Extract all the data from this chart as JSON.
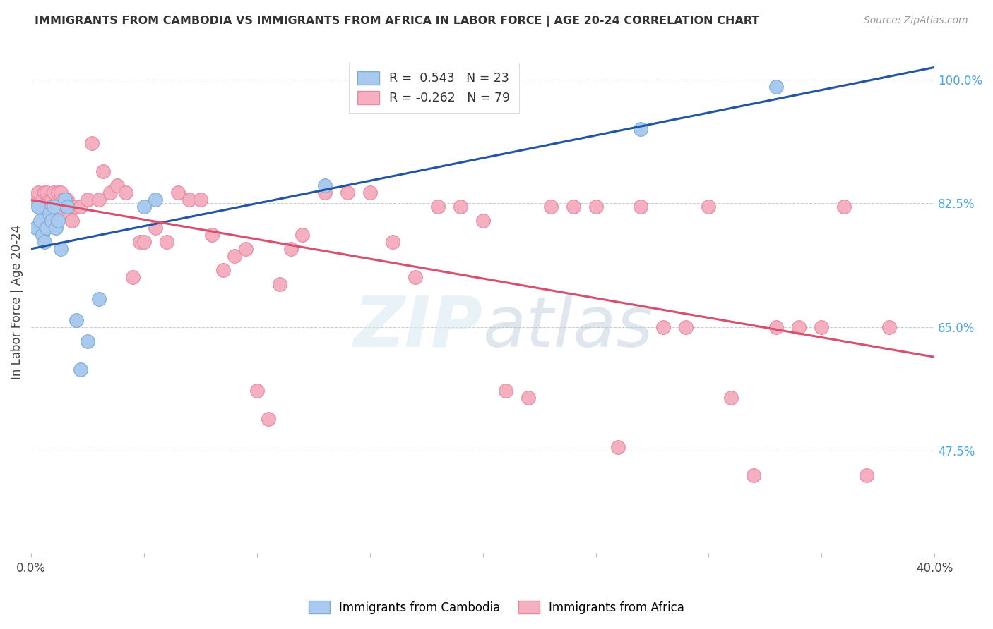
{
  "title": "IMMIGRANTS FROM CAMBODIA VS IMMIGRANTS FROM AFRICA IN LABOR FORCE | AGE 20-24 CORRELATION CHART",
  "source": "Source: ZipAtlas.com",
  "ylabel": "In Labor Force | Age 20-24",
  "xlim": [
    0.0,
    0.4
  ],
  "ylim": [
    0.33,
    1.04
  ],
  "xticks": [
    0.0,
    0.05,
    0.1,
    0.15,
    0.2,
    0.25,
    0.3,
    0.35,
    0.4
  ],
  "right_yticks": [
    0.475,
    0.65,
    0.825,
    1.0
  ],
  "right_yticklabels": [
    "47.5%",
    "65.0%",
    "82.5%",
    "100.0%"
  ],
  "cambodia_color": "#aac9ee",
  "africa_color": "#f4afc0",
  "cambodia_edge_color": "#7bacd4",
  "africa_edge_color": "#e888a0",
  "cambodia_line_color": "#2255a4",
  "africa_line_color": "#d94f6e",
  "cambodia_R": 0.543,
  "cambodia_N": 23,
  "africa_R": -0.262,
  "africa_N": 79,
  "legend_label_cambodia": "Immigrants from Cambodia",
  "legend_label_africa": "Immigrants from Africa",
  "background_color": "#ffffff",
  "grid_color": "#cccccc",
  "watermark": "ZIPatlas",
  "cambodia_x": [
    0.002,
    0.003,
    0.004,
    0.005,
    0.006,
    0.007,
    0.008,
    0.009,
    0.01,
    0.011,
    0.012,
    0.013,
    0.015,
    0.016,
    0.02,
    0.022,
    0.025,
    0.03,
    0.05,
    0.055,
    0.13,
    0.27,
    0.33
  ],
  "cambodia_y": [
    0.79,
    0.82,
    0.8,
    0.78,
    0.77,
    0.79,
    0.81,
    0.8,
    0.82,
    0.79,
    0.8,
    0.76,
    0.83,
    0.82,
    0.66,
    0.59,
    0.63,
    0.69,
    0.82,
    0.83,
    0.85,
    0.93,
    0.99
  ],
  "africa_x": [
    0.002,
    0.003,
    0.004,
    0.005,
    0.005,
    0.006,
    0.006,
    0.007,
    0.007,
    0.008,
    0.008,
    0.009,
    0.009,
    0.01,
    0.01,
    0.011,
    0.011,
    0.012,
    0.012,
    0.013,
    0.014,
    0.015,
    0.016,
    0.016,
    0.017,
    0.018,
    0.019,
    0.02,
    0.022,
    0.025,
    0.027,
    0.03,
    0.032,
    0.035,
    0.038,
    0.042,
    0.045,
    0.048,
    0.05,
    0.055,
    0.06,
    0.065,
    0.07,
    0.075,
    0.08,
    0.085,
    0.09,
    0.095,
    0.1,
    0.105,
    0.11,
    0.115,
    0.12,
    0.13,
    0.14,
    0.15,
    0.16,
    0.17,
    0.18,
    0.19,
    0.2,
    0.21,
    0.22,
    0.23,
    0.24,
    0.25,
    0.26,
    0.27,
    0.28,
    0.29,
    0.3,
    0.31,
    0.32,
    0.33,
    0.34,
    0.35,
    0.36,
    0.37,
    0.38
  ],
  "africa_y": [
    0.83,
    0.84,
    0.82,
    0.83,
    0.8,
    0.84,
    0.81,
    0.84,
    0.82,
    0.83,
    0.8,
    0.83,
    0.82,
    0.84,
    0.82,
    0.8,
    0.82,
    0.84,
    0.82,
    0.84,
    0.83,
    0.83,
    0.82,
    0.83,
    0.81,
    0.8,
    0.82,
    0.82,
    0.82,
    0.83,
    0.91,
    0.83,
    0.87,
    0.84,
    0.85,
    0.84,
    0.72,
    0.77,
    0.77,
    0.79,
    0.77,
    0.84,
    0.83,
    0.83,
    0.78,
    0.73,
    0.75,
    0.76,
    0.56,
    0.52,
    0.71,
    0.76,
    0.78,
    0.84,
    0.84,
    0.84,
    0.77,
    0.72,
    0.82,
    0.82,
    0.8,
    0.56,
    0.55,
    0.82,
    0.82,
    0.82,
    0.48,
    0.82,
    0.65,
    0.65,
    0.82,
    0.55,
    0.44,
    0.65,
    0.65,
    0.65,
    0.82,
    0.44,
    0.65
  ]
}
